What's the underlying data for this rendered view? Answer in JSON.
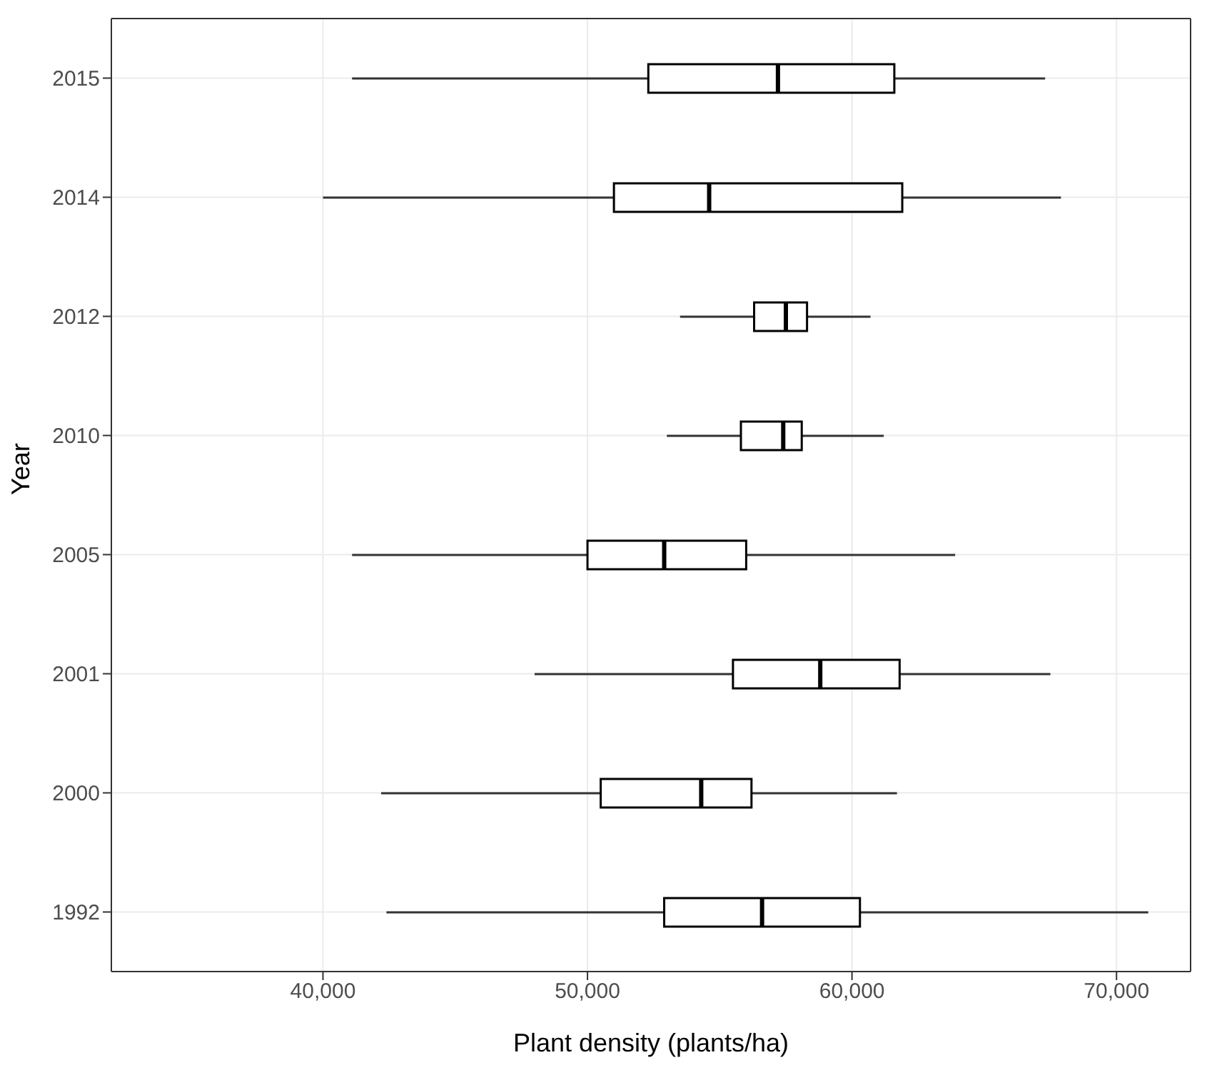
{
  "chart_data": {
    "type": "box",
    "orientation": "horizontal",
    "xlabel": "Plant density (plants/ha)",
    "ylabel": "Year",
    "categories": [
      "2015",
      "2014",
      "2012",
      "2010",
      "2005",
      "2001",
      "2000",
      "1992"
    ],
    "boxes": [
      {
        "low": 41100,
        "q1": 52300,
        "median": 57200,
        "q3": 61600,
        "high": 67300
      },
      {
        "low": 40000,
        "q1": 51000,
        "median": 54600,
        "q3": 61900,
        "high": 67900
      },
      {
        "low": 53500,
        "q1": 56300,
        "median": 57500,
        "q3": 58300,
        "high": 60700
      },
      {
        "low": 53000,
        "q1": 55800,
        "median": 57400,
        "q3": 58100,
        "high": 61200
      },
      {
        "low": 41100,
        "q1": 50000,
        "median": 52900,
        "q3": 56000,
        "high": 63900
      },
      {
        "low": 48000,
        "q1": 55500,
        "median": 58800,
        "q3": 61800,
        "high": 67500
      },
      {
        "low": 42200,
        "q1": 50500,
        "median": 54300,
        "q3": 56200,
        "high": 61700
      },
      {
        "low": 42400,
        "q1": 52900,
        "median": 56600,
        "q3": 60300,
        "high": 71200
      }
    ],
    "xlim": [
      32000,
      72800
    ],
    "xticks": [
      {
        "value": 40000,
        "label": "40,000"
      },
      {
        "value": 50000,
        "label": "50,000"
      },
      {
        "value": 60000,
        "label": "60,000"
      },
      {
        "value": 70000,
        "label": "70,000"
      }
    ],
    "grid": true
  }
}
